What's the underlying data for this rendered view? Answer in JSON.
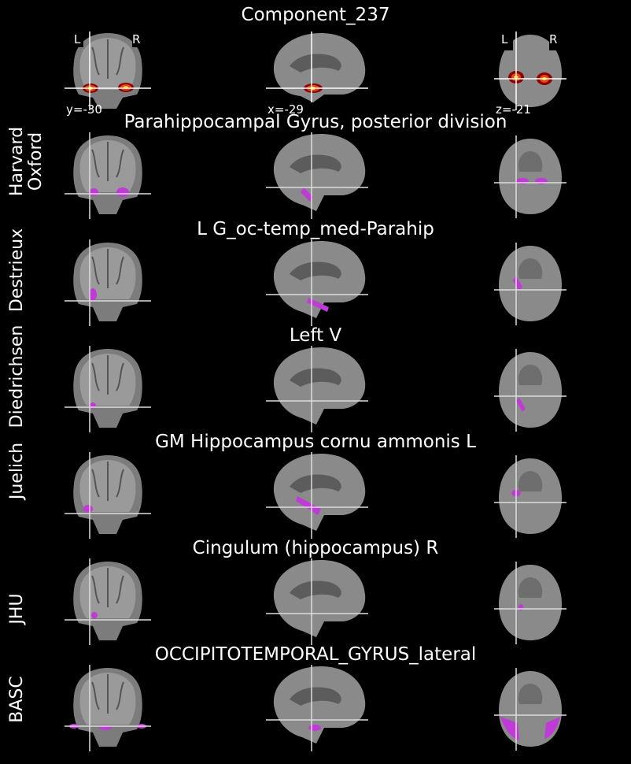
{
  "figure": {
    "title": "Component_237",
    "coords": {
      "y": "y=-30",
      "x": "x=-29",
      "z": "z=-21"
    },
    "lr_labels": {
      "left": "L",
      "right": "R"
    }
  },
  "atlases": [
    {
      "name": "Harvard\nOxford",
      "label": "Parahippocampal Gyrus, posterior division"
    },
    {
      "name": "Destrieux",
      "label": "L G_oc-temp_med-Parahip"
    },
    {
      "name": "Diedrichsen",
      "label": "Left V"
    },
    {
      "name": "Juelich",
      "label": "GM Hippocampus cornu ammonis L"
    },
    {
      "name": "JHU",
      "label": "Cingulum (hippocampus) R"
    },
    {
      "name": "BASC",
      "label": "OCCIPITOTEMPORAL_GYRUS_lateral"
    }
  ],
  "colors": {
    "background": "#000000",
    "atlas_region": "#c03ad8",
    "activation_hot": "#ffd21a",
    "activation_mid": "#e8460c",
    "activation_low": "#8b0000",
    "brain": "#8a8a8a",
    "crosshair": "#ffffff"
  }
}
